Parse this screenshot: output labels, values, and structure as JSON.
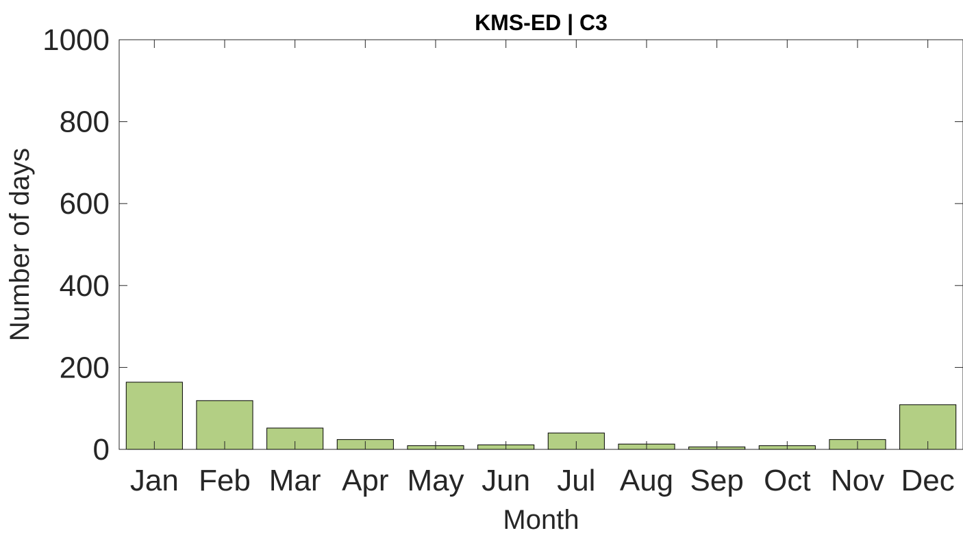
{
  "chart_data": {
    "type": "bar",
    "title": "KMS-ED | C3",
    "xlabel": "Month",
    "ylabel": "Number of days",
    "categories": [
      "Jan",
      "Feb",
      "Mar",
      "Apr",
      "May",
      "Jun",
      "Jul",
      "Aug",
      "Sep",
      "Oct",
      "Nov",
      "Dec"
    ],
    "values": [
      164,
      119,
      52,
      24,
      9,
      11,
      40,
      13,
      6,
      9,
      24,
      109
    ],
    "ylim": [
      0,
      1000
    ],
    "yticks": [
      "0",
      "200",
      "400",
      "600",
      "800",
      "1000"
    ],
    "grid": false,
    "legend": "none",
    "colors": {
      "bar_fill": "#b3cf84",
      "bar_edge": "#000000",
      "axis": "#262626",
      "text": "#262626"
    }
  }
}
